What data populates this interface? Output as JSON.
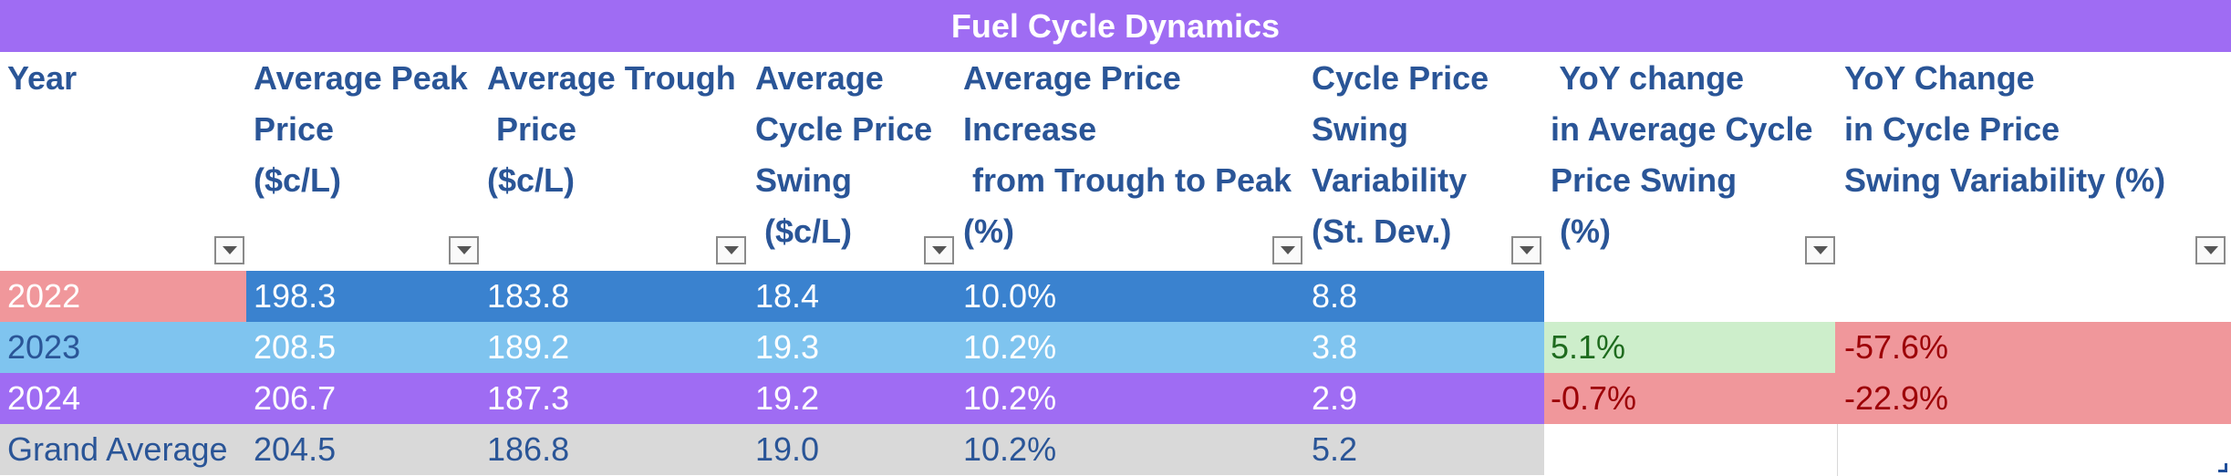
{
  "title": "Fuel Cycle Dynamics",
  "headers": [
    "Year",
    "Average Peak\nPrice\n($c/L)",
    "Average Trough\n Price\n($c/L)",
    "Average\nCycle Price\nSwing\n ($c/L)",
    "Average Price\nIncrease\n from Trough to Peak\n(%)",
    "Cycle Price\nSwing\nVariability\n(St. Dev.)",
    " YoY change\nin Average Cycle\nPrice Swing\n (%)",
    "YoY Change\nin Cycle Price\nSwing Variability (%)"
  ],
  "rows": [
    {
      "year": "2022",
      "peak": "198.3",
      "trough": "183.8",
      "swing": "18.4",
      "increase": "10.0%",
      "variability": "8.8",
      "yoy_swing": "",
      "yoy_var": ""
    },
    {
      "year": "2023",
      "peak": "208.5",
      "trough": "189.2",
      "swing": "19.3",
      "increase": "10.2%",
      "variability": "3.8",
      "yoy_swing": "5.1%",
      "yoy_var": "-57.6%"
    },
    {
      "year": "2024",
      "peak": "206.7",
      "trough": "187.3",
      "swing": "19.2",
      "increase": "10.2%",
      "variability": "2.9",
      "yoy_swing": "-0.7%",
      "yoy_var": "-22.9%"
    },
    {
      "year": "Grand Average",
      "peak": "204.5",
      "trough": "186.8",
      "swing": "19.0",
      "increase": "10.2%",
      "variability": "5.2",
      "yoy_swing": "",
      "yoy_var": ""
    }
  ],
  "icons": {
    "filter": "filter-dropdown-icon"
  },
  "colors": {
    "title_bg": "#9f6cf3",
    "header_text": "#2a5597",
    "row_2022_year": "#f0979b",
    "row_2022": "#3a82cf",
    "row_2023": "#7fc4ef",
    "row_2024": "#9f6cf3",
    "row_grand": "#d9d9d9",
    "positive_bg": "#cdeecb",
    "negative_bg": "#f0979b"
  }
}
